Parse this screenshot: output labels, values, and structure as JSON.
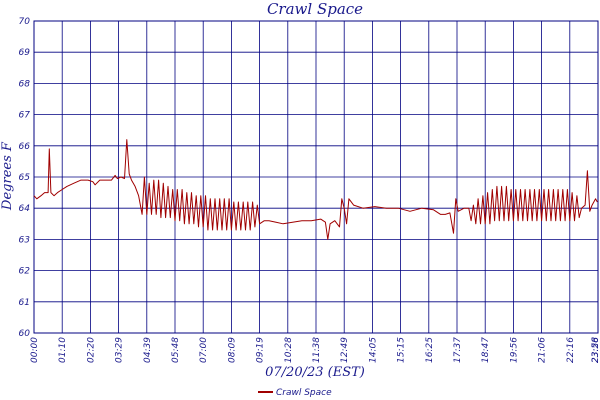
{
  "colors": {
    "axis": "#000080",
    "grid": "#000080",
    "series": "#a00000",
    "text": "#1a1a8c"
  },
  "chart_data": {
    "type": "line",
    "title": "Crawl Space",
    "xlabel": "07/20/23 (EST)",
    "ylabel": "Degrees F",
    "ylim": [
      60,
      70
    ],
    "yticks": [
      60,
      61,
      62,
      63,
      64,
      65,
      66,
      67,
      68,
      69,
      70
    ],
    "xticks": [
      "00:00",
      "01:10",
      "02:20",
      "03:29",
      "04:39",
      "05:48",
      "07:00",
      "08:09",
      "09:19",
      "10:28",
      "11:38",
      "12:49",
      "14:05",
      "15:15",
      "16:25",
      "17:37",
      "18:47",
      "19:56",
      "21:06",
      "22:16",
      "23:26",
      "23:58"
    ],
    "grid": true,
    "legend": {
      "position": "bottom-center",
      "entries": [
        "Crawl Space"
      ]
    },
    "series": [
      {
        "name": "Crawl Space",
        "x_unit": "hours since 00:00",
        "points": [
          [
            0.0,
            64.4
          ],
          [
            0.12,
            64.3
          ],
          [
            0.3,
            64.4
          ],
          [
            0.45,
            64.5
          ],
          [
            0.6,
            64.5
          ],
          [
            0.65,
            65.9
          ],
          [
            0.72,
            64.5
          ],
          [
            0.85,
            64.4
          ],
          [
            1.0,
            64.5
          ],
          [
            1.2,
            64.6
          ],
          [
            1.4,
            64.7
          ],
          [
            1.7,
            64.8
          ],
          [
            2.0,
            64.9
          ],
          [
            2.3,
            64.9
          ],
          [
            2.5,
            64.85
          ],
          [
            2.6,
            64.75
          ],
          [
            2.8,
            64.9
          ],
          [
            3.1,
            64.9
          ],
          [
            3.3,
            64.9
          ],
          [
            3.45,
            65.05
          ],
          [
            3.55,
            64.95
          ],
          [
            3.7,
            65.0
          ],
          [
            3.85,
            64.95
          ],
          [
            3.95,
            66.2
          ],
          [
            4.05,
            65.1
          ],
          [
            4.15,
            64.9
          ],
          [
            4.3,
            64.7
          ],
          [
            4.45,
            64.4
          ],
          [
            4.6,
            63.8
          ],
          [
            4.7,
            65.0
          ],
          [
            4.8,
            63.8
          ],
          [
            4.9,
            64.8
          ],
          [
            5.0,
            63.8
          ],
          [
            5.1,
            64.9
          ],
          [
            5.2,
            63.8
          ],
          [
            5.3,
            64.9
          ],
          [
            5.4,
            63.7
          ],
          [
            5.5,
            64.8
          ],
          [
            5.6,
            63.7
          ],
          [
            5.7,
            64.7
          ],
          [
            5.8,
            63.7
          ],
          [
            5.9,
            64.6
          ],
          [
            6.0,
            63.6
          ],
          [
            6.1,
            64.6
          ],
          [
            6.2,
            63.6
          ],
          [
            6.3,
            64.6
          ],
          [
            6.4,
            63.5
          ],
          [
            6.5,
            64.5
          ],
          [
            6.6,
            63.5
          ],
          [
            6.7,
            64.5
          ],
          [
            6.8,
            63.5
          ],
          [
            6.9,
            64.4
          ],
          [
            7.0,
            63.4
          ],
          [
            7.1,
            64.4
          ],
          [
            7.2,
            63.4
          ],
          [
            7.3,
            64.4
          ],
          [
            7.4,
            63.3
          ],
          [
            7.5,
            64.3
          ],
          [
            7.6,
            63.3
          ],
          [
            7.7,
            64.3
          ],
          [
            7.8,
            63.3
          ],
          [
            7.9,
            64.3
          ],
          [
            8.0,
            63.3
          ],
          [
            8.1,
            64.3
          ],
          [
            8.2,
            63.3
          ],
          [
            8.3,
            64.3
          ],
          [
            8.4,
            63.3
          ],
          [
            8.5,
            64.2
          ],
          [
            8.6,
            63.3
          ],
          [
            8.7,
            64.2
          ],
          [
            8.8,
            63.3
          ],
          [
            8.9,
            64.2
          ],
          [
            9.0,
            63.3
          ],
          [
            9.1,
            64.2
          ],
          [
            9.2,
            63.3
          ],
          [
            9.3,
            64.2
          ],
          [
            9.4,
            63.4
          ],
          [
            9.5,
            64.1
          ],
          [
            9.6,
            63.5
          ],
          [
            9.8,
            63.6
          ],
          [
            10.0,
            63.6
          ],
          [
            10.3,
            63.55
          ],
          [
            10.6,
            63.5
          ],
          [
            11.0,
            63.55
          ],
          [
            11.4,
            63.6
          ],
          [
            11.8,
            63.6
          ],
          [
            12.2,
            63.65
          ],
          [
            12.4,
            63.55
          ],
          [
            12.5,
            63.0
          ],
          [
            12.6,
            63.5
          ],
          [
            12.8,
            63.6
          ],
          [
            13.0,
            63.4
          ],
          [
            13.1,
            64.3
          ],
          [
            13.2,
            64.0
          ],
          [
            13.3,
            63.5
          ],
          [
            13.4,
            64.3
          ],
          [
            13.6,
            64.1
          ],
          [
            14.0,
            64.0
          ],
          [
            14.5,
            64.05
          ],
          [
            15.0,
            64.0
          ],
          [
            15.5,
            64.0
          ],
          [
            16.0,
            63.9
          ],
          [
            16.5,
            64.0
          ],
          [
            17.0,
            63.95
          ],
          [
            17.3,
            63.8
          ],
          [
            17.5,
            63.8
          ],
          [
            17.7,
            63.85
          ],
          [
            17.85,
            63.2
          ],
          [
            17.95,
            64.3
          ],
          [
            18.05,
            63.9
          ],
          [
            18.3,
            64.0
          ],
          [
            18.5,
            64.0
          ],
          [
            18.6,
            63.6
          ],
          [
            18.7,
            64.1
          ],
          [
            18.8,
            63.5
          ],
          [
            18.9,
            64.3
          ],
          [
            19.0,
            63.5
          ],
          [
            19.1,
            64.4
          ],
          [
            19.2,
            63.5
          ],
          [
            19.3,
            64.5
          ],
          [
            19.4,
            63.5
          ],
          [
            19.5,
            64.6
          ],
          [
            19.6,
            63.6
          ],
          [
            19.7,
            64.7
          ],
          [
            19.8,
            63.6
          ],
          [
            19.9,
            64.7
          ],
          [
            20.0,
            63.6
          ],
          [
            20.1,
            64.7
          ],
          [
            20.2,
            63.6
          ],
          [
            20.3,
            64.6
          ],
          [
            20.4,
            63.6
          ],
          [
            20.5,
            64.6
          ],
          [
            20.6,
            63.6
          ],
          [
            20.7,
            64.6
          ],
          [
            20.8,
            63.6
          ],
          [
            20.9,
            64.6
          ],
          [
            21.0,
            63.6
          ],
          [
            21.1,
            64.6
          ],
          [
            21.2,
            63.6
          ],
          [
            21.3,
            64.6
          ],
          [
            21.4,
            63.6
          ],
          [
            21.5,
            64.6
          ],
          [
            21.6,
            63.6
          ],
          [
            21.7,
            64.6
          ],
          [
            21.8,
            63.6
          ],
          [
            21.9,
            64.6
          ],
          [
            22.0,
            63.6
          ],
          [
            22.1,
            64.6
          ],
          [
            22.2,
            63.6
          ],
          [
            22.3,
            64.6
          ],
          [
            22.4,
            63.6
          ],
          [
            22.5,
            64.6
          ],
          [
            22.6,
            63.6
          ],
          [
            22.7,
            64.6
          ],
          [
            22.8,
            63.6
          ],
          [
            22.9,
            64.5
          ],
          [
            23.0,
            63.6
          ],
          [
            23.1,
            64.4
          ],
          [
            23.2,
            63.7
          ],
          [
            23.3,
            64.0
          ],
          [
            23.45,
            64.1
          ],
          [
            23.55,
            65.2
          ],
          [
            23.65,
            63.9
          ],
          [
            23.75,
            64.1
          ],
          [
            23.9,
            64.3
          ],
          [
            23.97,
            64.2
          ]
        ]
      }
    ]
  }
}
